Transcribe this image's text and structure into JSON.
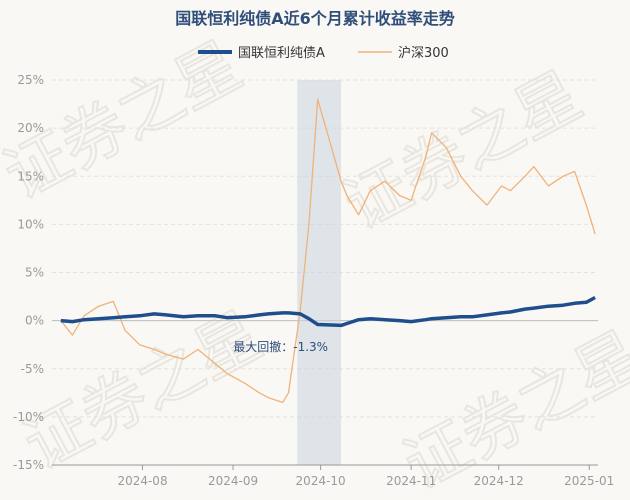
{
  "chart_data": {
    "type": "line",
    "title": "国联恒利纯债A近6个月累计收益率走势",
    "xlabel": "",
    "ylabel": "",
    "ylim": [
      -15,
      25
    ],
    "yticks": [
      "25%",
      "20%",
      "15%",
      "10%",
      "5%",
      "0%",
      "-5%",
      "-10%",
      "-15%"
    ],
    "xticks": [
      "2024-08",
      "2024-09",
      "2024-10",
      "2024-11",
      "2024-12",
      "2025-01"
    ],
    "grid": true,
    "legend_position": "top",
    "colors": {
      "fund": "#1f4e8c",
      "index": "#f0b27a",
      "shade": "#c9d4de",
      "background": "#faf8f4"
    },
    "watermark": "证券之星",
    "annotation": {
      "label": "最大回撤：-1.3%",
      "x_range": [
        "2024-09-23",
        "2024-10-08"
      ]
    },
    "x": [
      "2024-07-04",
      "2024-07-08",
      "2024-07-12",
      "2024-07-17",
      "2024-07-22",
      "2024-07-26",
      "2024-07-31",
      "2024-08-05",
      "2024-08-09",
      "2024-08-15",
      "2024-08-20",
      "2024-08-26",
      "2024-08-30",
      "2024-09-05",
      "2024-09-10",
      "2024-09-13",
      "2024-09-18",
      "2024-09-20",
      "2024-09-24",
      "2024-09-27",
      "2024-09-30",
      "2024-10-08",
      "2024-10-10",
      "2024-10-14",
      "2024-10-18",
      "2024-10-23",
      "2024-10-28",
      "2024-11-01",
      "2024-11-06",
      "2024-11-08",
      "2024-11-13",
      "2024-11-18",
      "2024-11-22",
      "2024-11-27",
      "2024-12-02",
      "2024-12-05",
      "2024-12-10",
      "2024-12-13",
      "2024-12-18",
      "2024-12-23",
      "2024-12-27",
      "2024-12-31",
      "2025-01-03"
    ],
    "series": [
      {
        "name": "国联恒利纯债A",
        "values": [
          0.0,
          -0.1,
          0.1,
          0.2,
          0.3,
          0.4,
          0.5,
          0.7,
          0.6,
          0.4,
          0.5,
          0.5,
          0.3,
          0.4,
          0.6,
          0.7,
          0.8,
          0.8,
          0.7,
          0.2,
          -0.4,
          -0.5,
          -0.3,
          0.1,
          0.2,
          0.1,
          0.0,
          -0.1,
          0.1,
          0.2,
          0.3,
          0.4,
          0.4,
          0.6,
          0.8,
          0.9,
          1.2,
          1.3,
          1.5,
          1.6,
          1.8,
          1.9,
          2.4
        ]
      },
      {
        "name": "沪深300",
        "values": [
          0.0,
          -1.5,
          0.5,
          1.5,
          2.0,
          -1.0,
          -2.5,
          -3.0,
          -3.5,
          -4.0,
          -3.0,
          -4.5,
          -5.5,
          -6.5,
          -7.5,
          -8.0,
          -8.5,
          -7.5,
          1.0,
          10.0,
          23.0,
          14.5,
          13.0,
          11.0,
          13.5,
          14.5,
          13.0,
          12.5,
          17.0,
          19.5,
          18.0,
          15.0,
          13.5,
          12.0,
          14.0,
          13.5,
          15.0,
          16.0,
          14.0,
          15.0,
          15.5,
          12.0,
          9.0
        ]
      }
    ]
  }
}
